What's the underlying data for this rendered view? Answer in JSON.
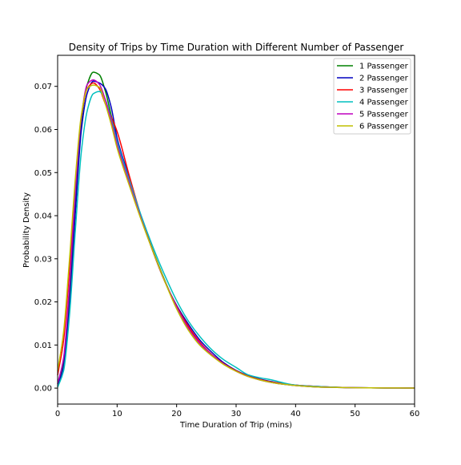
{
  "chart_data": {
    "type": "line",
    "title": "Density of Trips by Time Duration with Different Number of Passenger",
    "xlabel": "Time Duration of Trip (mins)",
    "ylabel": "Probability Density",
    "xlim": [
      0,
      60
    ],
    "ylim": [
      -0.0037,
      0.0772
    ],
    "xticks": [
      0,
      10,
      20,
      30,
      40,
      50,
      60
    ],
    "xtick_labels": [
      "0",
      "10",
      "20",
      "30",
      "40",
      "50",
      "60"
    ],
    "yticks": [
      0.0,
      0.01,
      0.02,
      0.03,
      0.04,
      0.05,
      0.06,
      0.07
    ],
    "ytick_labels": [
      "0.00",
      "0.01",
      "0.02",
      "0.03",
      "0.04",
      "0.05",
      "0.06",
      "0.07"
    ],
    "grid": false,
    "legend_position": "top-right",
    "series": [
      {
        "name": "1 Passenger",
        "color": "#008000",
        "x": [
          0,
          1,
          2,
          3,
          4,
          5,
          6,
          7,
          8,
          9,
          10,
          12,
          14,
          16,
          18,
          20,
          22,
          24,
          26,
          28,
          30,
          32,
          34,
          36,
          38,
          40,
          45,
          50,
          55,
          60
        ],
        "y": [
          0.001,
          0.006,
          0.021,
          0.043,
          0.062,
          0.0705,
          0.0733,
          0.0727,
          0.069,
          0.0633,
          0.057,
          0.048,
          0.0395,
          0.032,
          0.025,
          0.0188,
          0.014,
          0.0102,
          0.0075,
          0.0055,
          0.004,
          0.0028,
          0.0019,
          0.0013,
          0.0009,
          0.0006,
          0.0002,
          0.0001,
          5e-05,
          2e-05
        ]
      },
      {
        "name": "2 Passenger",
        "color": "#0000bf",
        "x": [
          0,
          1,
          2,
          3,
          4,
          5,
          6,
          7,
          8,
          9,
          10,
          12,
          14,
          16,
          18,
          20,
          22,
          24,
          26,
          28,
          30,
          32,
          34,
          36,
          38,
          40,
          45,
          50,
          55,
          60
        ],
        "y": [
          0.0005,
          0.005,
          0.019,
          0.041,
          0.06,
          0.0685,
          0.0712,
          0.0708,
          0.0695,
          0.0652,
          0.058,
          0.049,
          0.0398,
          0.0318,
          0.0248,
          0.0192,
          0.0148,
          0.011,
          0.0082,
          0.0058,
          0.0041,
          0.0029,
          0.0021,
          0.0015,
          0.001,
          0.0007,
          0.0003,
          0.0001,
          5e-05,
          2e-05
        ]
      },
      {
        "name": "3 Passenger",
        "color": "#ff0000",
        "x": [
          0,
          1,
          2,
          3,
          4,
          5,
          6,
          7,
          8,
          9,
          10,
          12,
          14,
          16,
          18,
          20,
          22,
          24,
          26,
          28,
          30,
          32,
          34,
          36,
          38,
          40,
          45,
          50,
          55,
          60
        ],
        "y": [
          0.003,
          0.011,
          0.028,
          0.048,
          0.063,
          0.0695,
          0.0708,
          0.0695,
          0.066,
          0.063,
          0.0595,
          0.0495,
          0.04,
          0.0318,
          0.0248,
          0.019,
          0.0143,
          0.0105,
          0.0077,
          0.0056,
          0.004,
          0.0028,
          0.002,
          0.0014,
          0.001,
          0.0007,
          0.0003,
          0.0001,
          5e-05,
          2e-05
        ]
      },
      {
        "name": "4 Passenger",
        "color": "#00bfbf",
        "x": [
          0,
          1,
          2,
          3,
          4,
          5,
          6,
          7,
          8,
          9,
          10,
          12,
          14,
          16,
          18,
          20,
          22,
          24,
          26,
          28,
          30,
          32,
          34,
          36,
          38,
          40,
          45,
          50,
          55,
          60
        ],
        "y": [
          0.0002,
          0.004,
          0.017,
          0.037,
          0.055,
          0.0645,
          0.0683,
          0.0688,
          0.067,
          0.0625,
          0.0572,
          0.0485,
          0.0402,
          0.0328,
          0.0262,
          0.0203,
          0.0155,
          0.0118,
          0.0088,
          0.0065,
          0.0048,
          0.0031,
          0.0024,
          0.0019,
          0.0012,
          0.0007,
          0.0003,
          0.0001,
          5e-05,
          2e-05
        ]
      },
      {
        "name": "5 Passenger",
        "color": "#bf00bf",
        "x": [
          0,
          1,
          2,
          3,
          4,
          5,
          6,
          7,
          8,
          9,
          10,
          12,
          14,
          16,
          18,
          20,
          22,
          24,
          26,
          28,
          30,
          32,
          34,
          36,
          38,
          40,
          45,
          50,
          55,
          60
        ],
        "y": [
          0.001,
          0.007,
          0.024,
          0.046,
          0.063,
          0.0705,
          0.0715,
          0.0705,
          0.067,
          0.062,
          0.0565,
          0.0478,
          0.0395,
          0.0318,
          0.0248,
          0.0188,
          0.0138,
          0.0102,
          0.0076,
          0.0055,
          0.0039,
          0.0027,
          0.0019,
          0.0013,
          0.0009,
          0.0006,
          0.0002,
          0.0001,
          5e-05,
          2e-05
        ]
      },
      {
        "name": "6 Passenger",
        "color": "#bfbf00",
        "x": [
          0,
          1,
          2,
          3,
          4,
          5,
          6,
          7,
          8,
          9,
          10,
          12,
          14,
          16,
          18,
          20,
          22,
          24,
          26,
          28,
          30,
          32,
          34,
          36,
          38,
          40,
          45,
          50,
          55,
          60
        ],
        "y": [
          0.004,
          0.013,
          0.03,
          0.049,
          0.0635,
          0.0695,
          0.0703,
          0.0698,
          0.066,
          0.0612,
          0.0557,
          0.0472,
          0.0392,
          0.0318,
          0.0248,
          0.0184,
          0.0134,
          0.0098,
          0.0074,
          0.0054,
          0.0039,
          0.0027,
          0.0019,
          0.0013,
          0.0009,
          0.0006,
          0.0002,
          0.0001,
          5e-05,
          2e-05
        ]
      }
    ]
  }
}
